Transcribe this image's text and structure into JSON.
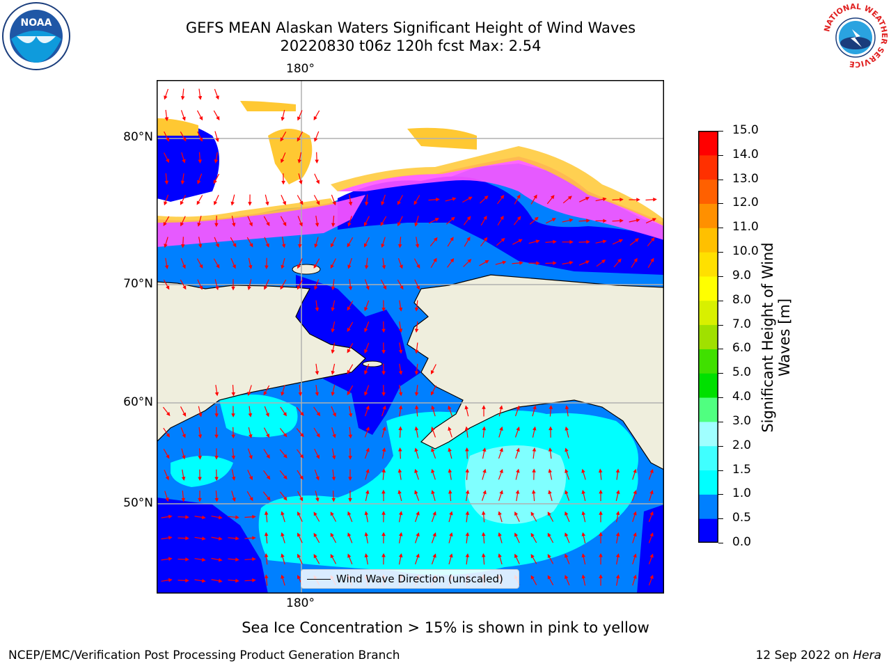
{
  "title": {
    "line1": "GEFS MEAN Alaskan Waters Significant Height of Wind Waves",
    "line2": "20220830 t06z 120h fcst   Max: 2.54"
  },
  "map": {
    "lon_label_top": "180°",
    "lon_label_bottom": "180°",
    "lat_labels": [
      "80°N",
      "70°N",
      "60°N",
      "50°N"
    ],
    "legend_label": "Wind Wave Direction (unscaled)",
    "colors": {
      "land": "#efeedd",
      "ice_pink": "#ff55ff",
      "ice_yellow": "#ffc832",
      "arrow": "#ff0000",
      "grid": "#b0b0b0"
    }
  },
  "colorbar": {
    "title_line1": "Significant Height of Wind",
    "title_line2": "Waves [m]",
    "ticks": [
      "0.0",
      "0.5",
      "1.0",
      "1.5",
      "2.0",
      "3.0",
      "4.0",
      "5.0",
      "6.0",
      "7.0",
      "8.0",
      "9.0",
      "10.0",
      "11.0",
      "12.0",
      "13.0",
      "14.0",
      "15.0"
    ],
    "colors": [
      "#0000ff",
      "#0080ff",
      "#00ffff",
      "#40ffff",
      "#a0ffff",
      "#50ff80",
      "#00e000",
      "#40e000",
      "#a0e000",
      "#d8f000",
      "#ffff00",
      "#ffe000",
      "#ffc000",
      "#ff9000",
      "#ff6000",
      "#ff3000",
      "#ff0000"
    ]
  },
  "note": "Sea Ice Concentration > 15% is shown in pink to yellow",
  "footer": {
    "left": "NCEP/EMC/Verification Post Processing Product Generation Branch",
    "right_date": "12 Sep 2022 on ",
    "right_machine": "Hera"
  },
  "logos": {
    "noaa": "NOAA",
    "nws_text": "NATIONAL WEATHER SERVICE"
  }
}
